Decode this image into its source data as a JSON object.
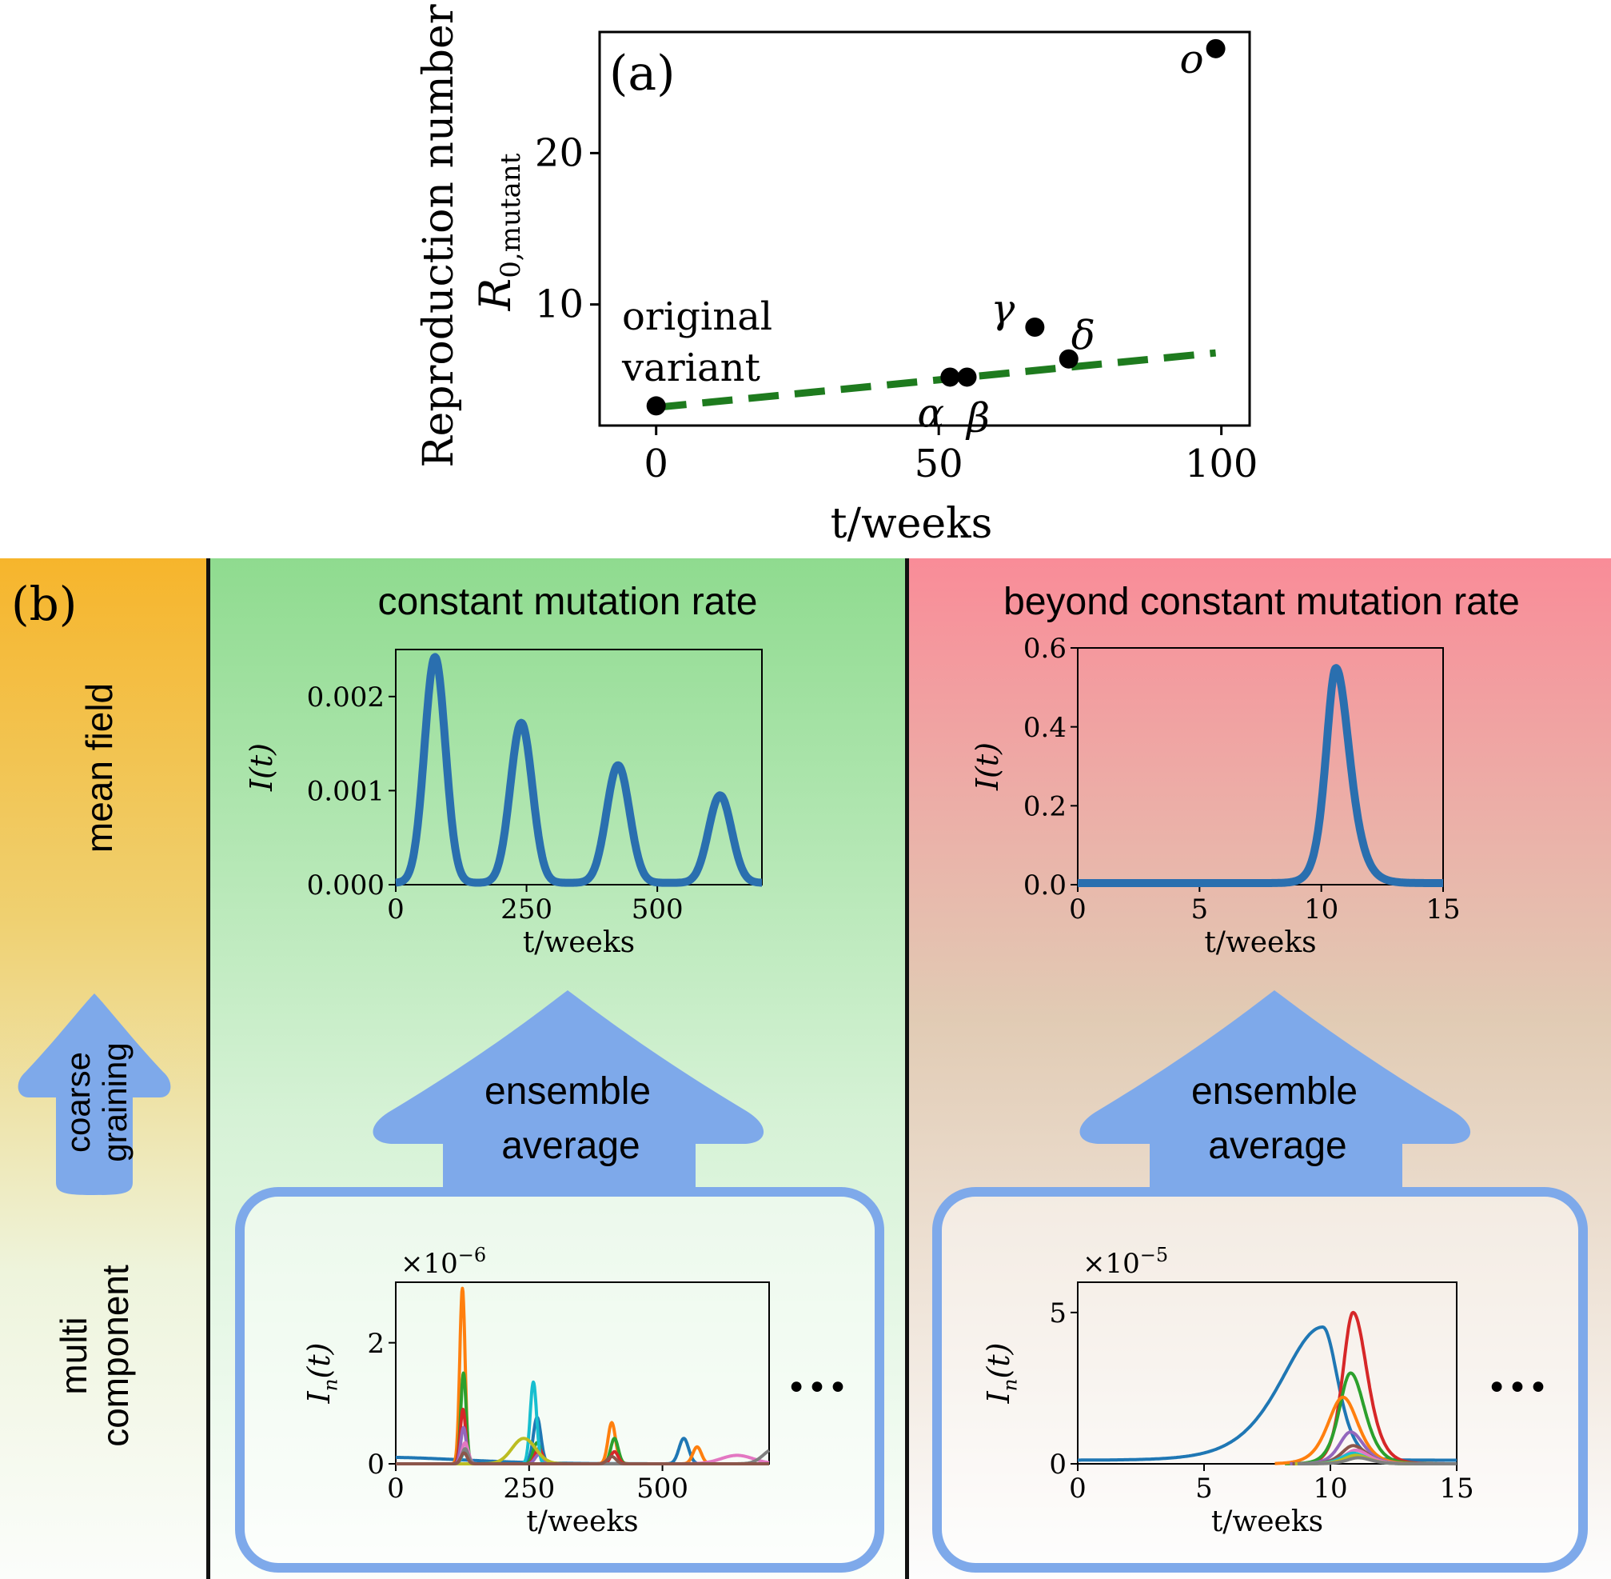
{
  "panel_a": {
    "label": "(a)",
    "ylabel_line1": "Reproduction number",
    "ylabel_line2": "R",
    "ylabel_sub": "0,mutant",
    "xlabel": "t/weeks",
    "annotation_original_1": "original",
    "annotation_original_2": "variant"
  },
  "panel_b": {
    "label": "(b)",
    "row_mean_field": "mean field",
    "coarse_line1": "coarse",
    "coarse_line2": "graining",
    "row_multi_1": "multi",
    "row_multi_2": "component",
    "left_title": "constant mutation rate",
    "right_title": "beyond constant mutation rate",
    "ensemble_line1": "ensemble",
    "ensemble_line2": "average",
    "ellipsis": "•••"
  },
  "colors": {
    "scatter": "#000000",
    "trend": "#1e7b1e",
    "mean_line": "#2a6faf",
    "arrow": "#7ea9ea",
    "left_bg_top": "#8fdb8f",
    "right_bg_top": "#f98c98",
    "side_top": "#f6b52c"
  },
  "chart_data": [
    {
      "id": "r0",
      "type": "scatter",
      "title": "",
      "xlabel": "t/weeks",
      "ylabel": "Reproduction number R_0,mutant",
      "xlim": [
        -10,
        105
      ],
      "ylim": [
        2,
        28
      ],
      "xticks": [
        0,
        50,
        100
      ],
      "yticks": [
        10,
        20
      ],
      "points": [
        {
          "x": 0,
          "y": 3.3,
          "label": ""
        },
        {
          "x": 52,
          "y": 5.2,
          "label": "α"
        },
        {
          "x": 55,
          "y": 5.2,
          "label": "β"
        },
        {
          "x": 67,
          "y": 8.5,
          "label": "γ"
        },
        {
          "x": 73,
          "y": 6.4,
          "label": "δ"
        },
        {
          "x": 99,
          "y": 26.9,
          "label": "o"
        }
      ],
      "trend_line": {
        "x": [
          0,
          99
        ],
        "y": [
          3.2,
          6.8
        ],
        "style": "dashed"
      }
    },
    {
      "id": "mean_const",
      "type": "line",
      "title": "constant mutation rate",
      "xlabel": "t/weeks",
      "ylabel": "I(t)",
      "xlim": [
        0,
        700
      ],
      "ylim": [
        0,
        0.0025
      ],
      "xticks": [
        0,
        250,
        500
      ],
      "yticks": [
        "0.000",
        "0.001",
        "0.002"
      ],
      "ytick_values": [
        0,
        0.001,
        0.002
      ],
      "baseline": 2e-05,
      "peaks": [
        {
          "t": 75,
          "height": 0.0024,
          "width": 20
        },
        {
          "t": 240,
          "height": 0.0017,
          "width": 21
        },
        {
          "t": 425,
          "height": 0.00125,
          "width": 22
        },
        {
          "t": 620,
          "height": 0.00093,
          "width": 22
        }
      ]
    },
    {
      "id": "mean_beyond",
      "type": "line",
      "title": "beyond constant mutation rate",
      "xlabel": "t/weeks",
      "ylabel": "I(t)",
      "xlim": [
        0,
        15
      ],
      "ylim": [
        0,
        0.6
      ],
      "xticks": [
        0,
        5,
        10,
        15
      ],
      "yticks": [
        "0.0",
        "0.2",
        "0.4",
        "0.6"
      ],
      "ytick_values": [
        0,
        0.2,
        0.4,
        0.6
      ],
      "peaks": [
        {
          "t": 10.6,
          "height": 0.545,
          "width_left": 0.55,
          "width_right": 0.75
        }
      ]
    },
    {
      "id": "multi_const",
      "type": "line",
      "xlabel": "t/weeks",
      "ylabel": "I_n(t)",
      "multiplier": "×10",
      "multiplier_exp": "−6",
      "xlim": [
        0,
        700
      ],
      "ylim": [
        0,
        3.0
      ],
      "xticks": [
        0,
        250,
        500
      ],
      "yticks": [
        "0",
        "2"
      ],
      "ytick_values": [
        0,
        2
      ],
      "series": [
        {
          "color": "#1f77b4",
          "peaks": [
            {
              "t": -40,
              "h": 0.11,
              "w": 160
            },
            {
              "t": 265,
              "h": 0.75,
              "w": 7
            },
            {
              "t": 540,
              "h": 0.42,
              "w": 9
            }
          ]
        },
        {
          "color": "#ff7f0e",
          "peaks": [
            {
              "t": 125,
              "h": 2.9,
              "w": 5
            },
            {
              "t": 405,
              "h": 0.68,
              "w": 7
            },
            {
              "t": 565,
              "h": 0.28,
              "w": 8
            }
          ]
        },
        {
          "color": "#2ca02c",
          "peaks": [
            {
              "t": 127,
              "h": 1.5,
              "w": 5
            },
            {
              "t": 265,
              "h": 0.35,
              "w": 7
            },
            {
              "t": 410,
              "h": 0.42,
              "w": 7
            }
          ]
        },
        {
          "color": "#d62728",
          "peaks": [
            {
              "t": 126,
              "h": 0.9,
              "w": 5
            },
            {
              "t": 268,
              "h": 0.25,
              "w": 7
            },
            {
              "t": 410,
              "h": 0.2,
              "w": 7
            }
          ]
        },
        {
          "color": "#9467bd",
          "peaks": [
            {
              "t": 127,
              "h": 0.6,
              "w": 5
            },
            {
              "t": 268,
              "h": 0.15,
              "w": 7
            }
          ]
        },
        {
          "color": "#17becf",
          "peaks": [
            {
              "t": 258,
              "h": 1.35,
              "w": 6
            },
            {
              "t": 130,
              "h": 0.2,
              "w": 6
            }
          ]
        },
        {
          "color": "#bcbd22",
          "peaks": [
            {
              "t": 240,
              "h": 0.42,
              "w": 22
            }
          ]
        },
        {
          "color": "#e377c2",
          "peaks": [
            {
              "t": 640,
              "h": 0.14,
              "w": 30
            },
            {
              "t": 130,
              "h": 0.35,
              "w": 6
            }
          ]
        },
        {
          "color": "#7f7f7f",
          "peaks": [
            {
              "t": 710,
              "h": 0.25,
              "w": 20
            },
            {
              "t": 130,
              "h": 0.25,
              "w": 6
            }
          ]
        },
        {
          "color": "#8c564b",
          "peaks": [
            {
              "t": 128,
              "h": 0.18,
              "w": 6
            },
            {
              "t": 405,
              "h": 0.12,
              "w": 8
            }
          ]
        }
      ]
    },
    {
      "id": "multi_beyond",
      "type": "line",
      "xlabel": "t/weeks",
      "ylabel": "I_n(t)",
      "multiplier": "×10",
      "multiplier_exp": "−5",
      "xlim": [
        0,
        15
      ],
      "ylim": [
        0,
        6.0
      ],
      "xticks": [
        0,
        5,
        10,
        15
      ],
      "yticks": [
        "0",
        "5"
      ],
      "ytick_values": [
        0,
        5
      ],
      "series": [
        {
          "color": "#1f77b4",
          "peak_t": 9.7,
          "h": 4.4,
          "wl": 2.2,
          "wr": 0.8,
          "start": 0
        },
        {
          "color": "#d62728",
          "peak_t": 10.9,
          "h": 5.0,
          "wl": 0.55,
          "wr": 0.75,
          "start": 8.5
        },
        {
          "color": "#2ca02c",
          "peak_t": 10.8,
          "h": 3.0,
          "wl": 0.6,
          "wr": 0.75,
          "start": 8.2
        },
        {
          "color": "#ff7f0e",
          "peak_t": 10.5,
          "h": 2.2,
          "wl": 0.8,
          "wr": 0.8,
          "start": 7.8
        },
        {
          "color": "#9467bd",
          "peak_t": 10.8,
          "h": 1.05,
          "wl": 0.6,
          "wr": 0.7,
          "start": 8.4
        },
        {
          "color": "#8c564b",
          "peak_t": 10.9,
          "h": 0.6,
          "wl": 0.6,
          "wr": 0.7,
          "start": 8.5
        },
        {
          "color": "#e377c2",
          "peak_t": 11.0,
          "h": 0.45,
          "wl": 0.6,
          "wr": 0.7,
          "start": 8.6
        },
        {
          "color": "#17becf",
          "peak_t": 10.9,
          "h": 0.35,
          "wl": 0.6,
          "wr": 0.7,
          "start": 8.6
        },
        {
          "color": "#bcbd22",
          "peak_t": 11.0,
          "h": 0.28,
          "wl": 0.6,
          "wr": 0.7,
          "start": 8.6
        },
        {
          "color": "#7f7f7f",
          "peak_t": 11.1,
          "h": 0.2,
          "wl": 0.6,
          "wr": 0.7,
          "start": 8.7
        }
      ]
    }
  ]
}
